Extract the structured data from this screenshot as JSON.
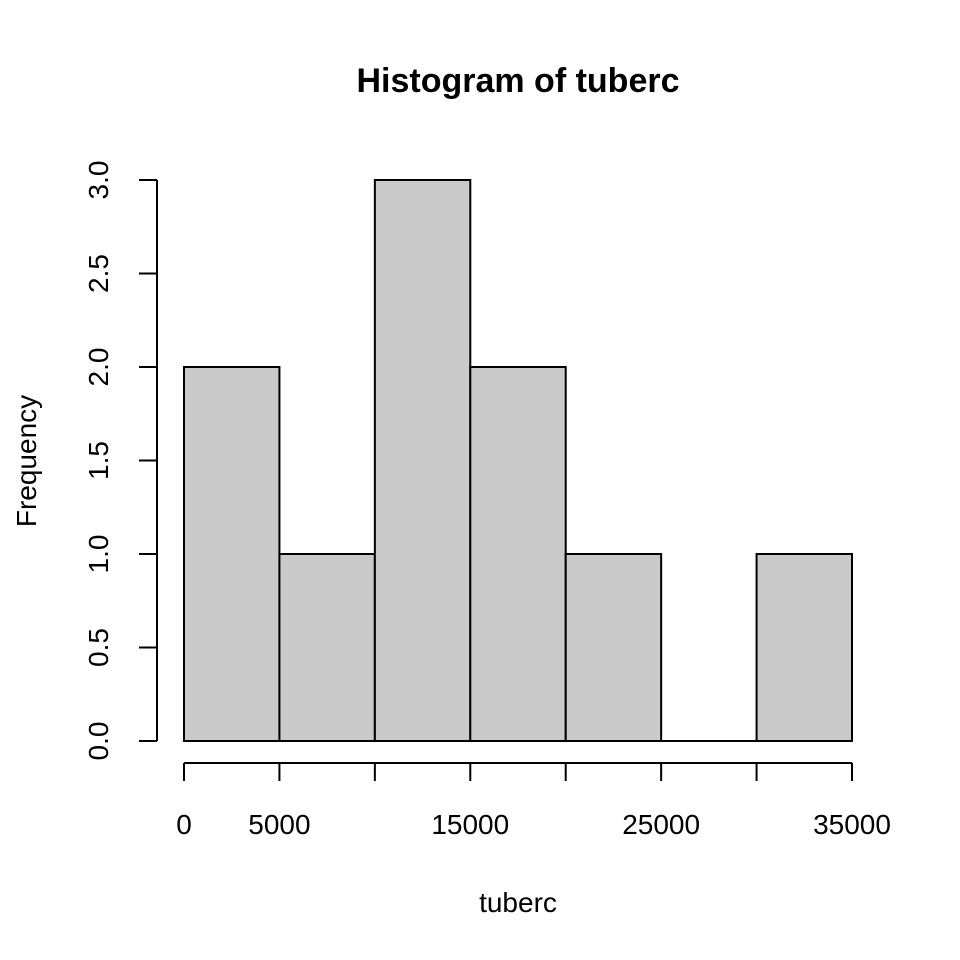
{
  "chart_data": {
    "type": "bar",
    "title": "Histogram of tuberc",
    "xlabel": "tuberc",
    "ylabel": "Frequency",
    "bins": [
      {
        "from": 0,
        "to": 5000,
        "count": 2
      },
      {
        "from": 5000,
        "to": 10000,
        "count": 1
      },
      {
        "from": 10000,
        "to": 15000,
        "count": 3
      },
      {
        "from": 15000,
        "to": 20000,
        "count": 2
      },
      {
        "from": 20000,
        "to": 25000,
        "count": 1
      },
      {
        "from": 25000,
        "to": 30000,
        "count": 0
      },
      {
        "from": 30000,
        "to": 35000,
        "count": 1
      }
    ],
    "xlim": [
      0,
      35000
    ],
    "ylim": [
      0,
      3
    ],
    "x_ticks": [
      0,
      5000,
      10000,
      15000,
      20000,
      25000,
      30000,
      35000
    ],
    "x_tick_labels": [
      "0",
      "5000",
      "",
      "15000",
      "",
      "25000",
      "",
      "35000"
    ],
    "y_ticks": [
      0,
      0.5,
      1,
      1.5,
      2,
      2.5,
      3
    ],
    "y_tick_labels": [
      "0.0",
      "0.5",
      "1.0",
      "1.5",
      "2.0",
      "2.5",
      "3.0"
    ],
    "bar_color": "#cacaca",
    "grid": false,
    "legend": "none"
  }
}
